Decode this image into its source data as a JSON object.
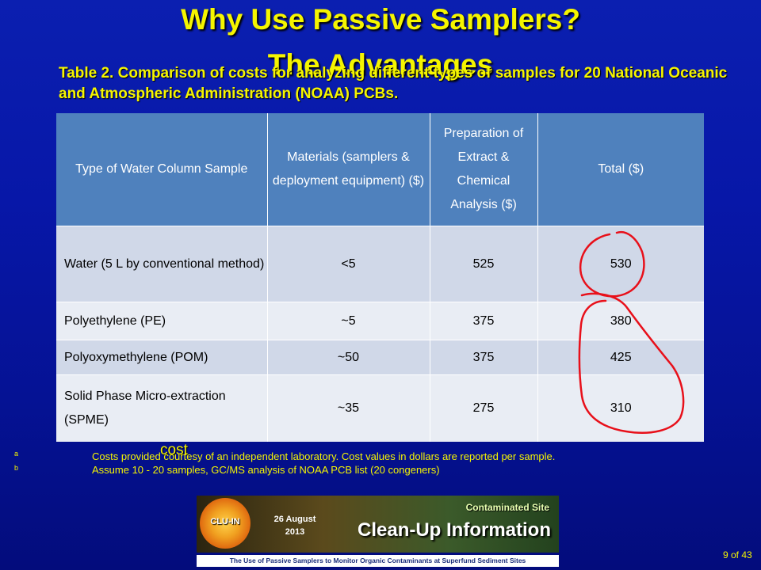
{
  "title": {
    "line1": "Why Use Passive Samplers?",
    "line2": "The Advantages"
  },
  "subtitle": "Table 2. Comparison of costs for analyzing different types of samples for 20 National Oceanic and Atmospheric Administration (NOAA) PCBs.",
  "table": {
    "headers": [
      "Type of Water Column Sample",
      "Materials (samplers & deployment equipment) ($)",
      "Preparation of Extract & Chemical Analysis ($)",
      "Total ($)"
    ],
    "rows": [
      {
        "type": "Water (5 L by conventional method)",
        "materials": "<5",
        "preparation": "525",
        "total": "530"
      },
      {
        "type": "Polyethylene (PE)",
        "materials": "~5",
        "preparation": "375",
        "total": "380"
      },
      {
        "type": "Polyoxymethylene (POM)",
        "materials": "~50",
        "preparation": "375",
        "total": "425"
      },
      {
        "type": "Solid Phase Micro-extraction (SPME)",
        "materials": "~35",
        "preparation": "275",
        "total": "310"
      }
    ]
  },
  "cost_word": "cost",
  "footnotes": [
    {
      "mark": "a",
      "text": "Costs provided courtesy of an independent laboratory.  Cost values in dollars are reported per sample."
    },
    {
      "mark": "b",
      "text": "Assume 10 - 20 samples, GC/MS analysis of NOAA PCB list  (20 congeners)"
    }
  ],
  "banner": {
    "logo_text": "CLU-IN",
    "date_line1": "26 August",
    "date_line2": "2013",
    "contaminated_site": "Contaminated Site",
    "clean_up": "Clean-Up Information"
  },
  "footer_text": "The Use of Passive Samplers to Monitor Organic Contaminants at Superfund Sediment Sites",
  "page_number": "9 of 43",
  "colors": {
    "title_yellow": "#f5f500",
    "header_blue": "#4f81bd",
    "ink_red": "#e8101a"
  }
}
